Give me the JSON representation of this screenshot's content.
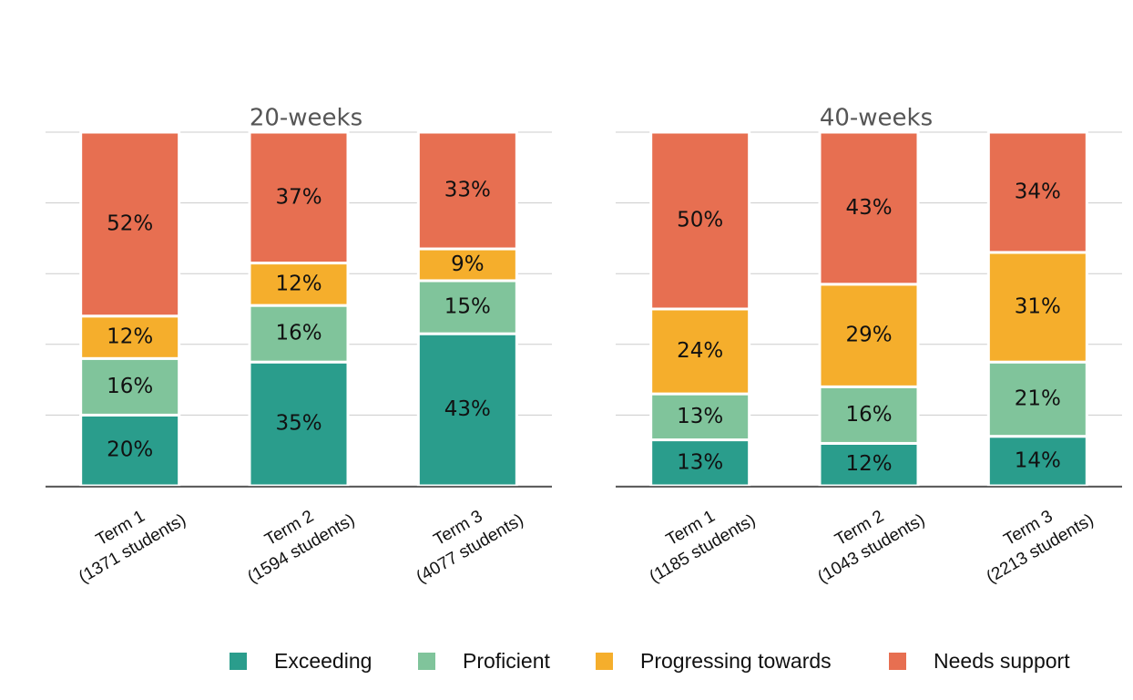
{
  "chart_data": [
    {
      "type": "stacked_bar",
      "title": "20-weeks",
      "categories": [
        [
          "Term 1",
          "(1371 students)"
        ],
        [
          "Term 2",
          "(1594 students)"
        ],
        [
          "Term 3",
          "(4077 students)"
        ]
      ],
      "series": [
        {
          "name": "Exceeding",
          "color": "#2a9d8c",
          "values": [
            20,
            35,
            43
          ],
          "value_labels": [
            "20%",
            "35%",
            "43%"
          ]
        },
        {
          "name": "Proficient",
          "color": "#80c49b",
          "values": [
            16,
            16,
            15
          ],
          "value_labels": [
            "16%",
            "16%",
            "15%"
          ]
        },
        {
          "name": "Progressing towards",
          "color": "#f5ae2c",
          "values": [
            12,
            12,
            9
          ],
          "value_labels": [
            "12%",
            "12%",
            "9%"
          ]
        },
        {
          "name": "Needs support",
          "color": "#e76f51",
          "values": [
            52,
            37,
            33
          ],
          "value_labels": [
            "52%",
            "37%",
            "33%"
          ]
        }
      ],
      "ylim": [
        0,
        100
      ],
      "yticks": [
        0,
        20,
        40,
        60,
        80,
        100
      ],
      "grid": true,
      "legend": "bottom"
    },
    {
      "type": "stacked_bar",
      "title": "40-weeks",
      "categories": [
        [
          "Term 1",
          "(1185 students)"
        ],
        [
          "Term 2",
          "(1043 students)"
        ],
        [
          "Term 3",
          "(2213 students)"
        ]
      ],
      "series": [
        {
          "color": "#2a9d8c",
          "values": [
            13,
            12,
            14
          ],
          "value_labels": [
            "13%",
            "12%",
            "14%"
          ]
        },
        {
          "color": "#80c49b",
          "values": [
            13,
            16,
            21
          ],
          "value_labels": [
            "13%",
            "16%",
            "21%"
          ]
        },
        {
          "color": "#f5ae2c",
          "values": [
            24,
            29,
            31
          ],
          "value_labels": [
            "24%",
            "29%",
            "31%"
          ]
        },
        {
          "color": "#e76f51",
          "values": [
            50,
            43,
            34
          ],
          "value_labels": [
            "50%",
            "43%",
            "34%"
          ]
        }
      ],
      "ylim": [
        0,
        100
      ],
      "yticks": [
        0,
        20,
        40,
        60,
        80,
        100
      ],
      "grid": true
    }
  ]
}
